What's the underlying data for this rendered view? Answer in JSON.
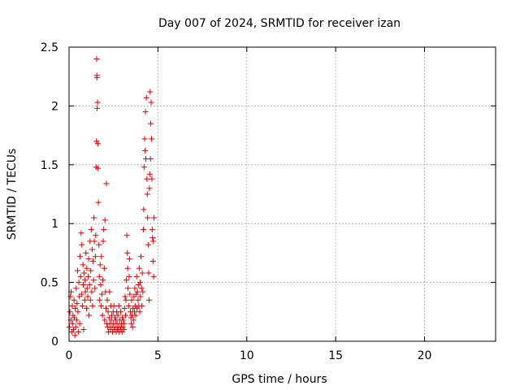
{
  "chart_data": {
    "type": "scatter",
    "title": "Day 007 of 2024, SRMTID for receiver izan",
    "xlabel": "GPS time / hours",
    "ylabel": "SRMTID / TECUs",
    "xlim": [
      0,
      24
    ],
    "ylim": [
      0,
      2.5
    ],
    "xticks": [
      0,
      5,
      10,
      15,
      20
    ],
    "yticks": [
      0,
      0.5,
      1,
      1.5,
      2,
      2.5
    ],
    "xtick_labels": [
      "0",
      "5",
      "10",
      "15",
      "20"
    ],
    "ytick_labels": [
      "0",
      "0.5",
      "1",
      "1.5",
      "2",
      "2.5"
    ],
    "grid": true,
    "marker": "+",
    "series": [
      {
        "name": "SRMTID",
        "color": "#e00000",
        "points": [
          [
            0.02,
            0.12
          ],
          [
            0.05,
            0.25
          ],
          [
            0.08,
            0.38
          ],
          [
            0.1,
            0.18
          ],
          [
            0.12,
            0.42
          ],
          [
            0.15,
            0.08
          ],
          [
            0.18,
            0.3
          ],
          [
            0.2,
            0.15
          ],
          [
            0.22,
            0.22
          ],
          [
            0.25,
            0.1
          ],
          [
            0.28,
            0.35
          ],
          [
            0.3,
            0.2
          ],
          [
            0.33,
            0.05
          ],
          [
            0.35,
            0.28
          ],
          [
            0.38,
            0.12
          ],
          [
            0.4,
            0.45
          ],
          [
            0.42,
            0.18
          ],
          [
            0.45,
            0.32
          ],
          [
            0.48,
            0.6
          ],
          [
            0.5,
            0.25
          ],
          [
            0.52,
            0.08
          ],
          [
            0.55,
            0.5
          ],
          [
            0.58,
            0.38
          ],
          [
            0.6,
            0.15
          ],
          [
            0.62,
            0.72
          ],
          [
            0.65,
            0.55
          ],
          [
            0.68,
            0.92
          ],
          [
            0.7,
            0.4
          ],
          [
            0.72,
            0.82
          ],
          [
            0.75,
            0.3
          ],
          [
            0.78,
            0.65
          ],
          [
            0.8,
            0.48
          ],
          [
            0.82,
            0.1
          ],
          [
            0.85,
            0.58
          ],
          [
            0.88,
            0.35
          ],
          [
            0.9,
            0.52
          ],
          [
            0.92,
            0.42
          ],
          [
            0.95,
            0.75
          ],
          [
            0.98,
            0.28
          ],
          [
            1.0,
            0.62
          ],
          [
            1.02,
            0.45
          ],
          [
            1.05,
            0.38
          ],
          [
            1.08,
            0.55
          ],
          [
            1.1,
            0.7
          ],
          [
            1.12,
            0.22
          ],
          [
            1.15,
            0.48
          ],
          [
            1.18,
            0.85
          ],
          [
            1.2,
            0.35
          ],
          [
            1.22,
            0.6
          ],
          [
            1.25,
            0.95
          ],
          [
            1.28,
            0.42
          ],
          [
            1.3,
            0.78
          ],
          [
            1.32,
            0.3
          ],
          [
            1.35,
            0.68
          ],
          [
            1.38,
            0.52
          ],
          [
            1.4,
            1.05
          ],
          [
            1.42,
            0.85
          ],
          [
            1.45,
            0.45
          ],
          [
            1.48,
            0.72
          ],
          [
            1.5,
            0.9
          ],
          [
            1.52,
            1.48
          ],
          [
            1.54,
            1.7
          ],
          [
            1.55,
            2.4
          ],
          [
            1.56,
            2.26
          ],
          [
            1.57,
            2.24
          ],
          [
            1.58,
            1.98
          ],
          [
            1.6,
            2.03
          ],
          [
            1.62,
            1.68
          ],
          [
            1.63,
            1.47
          ],
          [
            1.65,
            1.18
          ],
          [
            1.68,
            0.82
          ],
          [
            1.7,
            0.55
          ],
          [
            1.72,
            0.35
          ],
          [
            1.75,
            0.65
          ],
          [
            1.78,
            0.48
          ],
          [
            1.8,
            0.3
          ],
          [
            1.82,
            0.72
          ],
          [
            1.85,
            0.4
          ],
          [
            1.88,
            0.22
          ],
          [
            1.9,
            0.52
          ],
          [
            1.92,
            0.85
          ],
          [
            1.95,
            0.95
          ],
          [
            1.98,
            0.62
          ],
          [
            2.0,
            0.18
          ],
          [
            2.02,
            1.03
          ],
          [
            2.05,
            0.42
          ],
          [
            2.08,
            0.28
          ],
          [
            2.1,
            1.34
          ],
          [
            2.12,
            0.15
          ],
          [
            2.15,
            0.35
          ],
          [
            2.18,
            0.12
          ],
          [
            2.2,
            0.25
          ],
          [
            2.22,
            0.08
          ],
          [
            2.25,
            0.2
          ],
          [
            2.28,
            0.42
          ],
          [
            2.3,
            0.15
          ],
          [
            2.32,
            0.1
          ],
          [
            2.35,
            0.3
          ],
          [
            2.38,
            0.18
          ],
          [
            2.4,
            0.22
          ],
          [
            2.42,
            0.12
          ],
          [
            2.45,
            0.08
          ],
          [
            2.48,
            0.25
          ],
          [
            2.5,
            0.15
          ],
          [
            2.52,
            0.3
          ],
          [
            2.55,
            0.1
          ],
          [
            2.58,
            0.2
          ],
          [
            2.6,
            0.12
          ],
          [
            2.62,
            0.18
          ],
          [
            2.65,
            0.08
          ],
          [
            2.68,
            0.25
          ],
          [
            2.7,
            0.15
          ],
          [
            2.72,
            0.1
          ],
          [
            2.75,
            0.22
          ],
          [
            2.78,
            0.12
          ],
          [
            2.8,
            0.3
          ],
          [
            2.82,
            0.08
          ],
          [
            2.85,
            0.18
          ],
          [
            2.88,
            0.12
          ],
          [
            2.9,
            0.25
          ],
          [
            2.92,
            0.1
          ],
          [
            2.95,
            0.15
          ],
          [
            2.98,
            0.08
          ],
          [
            3.0,
            0.2
          ],
          [
            3.02,
            0.12
          ],
          [
            3.05,
            0.18
          ],
          [
            3.08,
            0.1
          ],
          [
            3.1,
            0.15
          ],
          [
            3.12,
            0.28
          ],
          [
            3.15,
            0.38
          ],
          [
            3.18,
            0.22
          ],
          [
            3.2,
            0.35
          ],
          [
            3.22,
            0.52
          ],
          [
            3.25,
            0.9
          ],
          [
            3.28,
            0.75
          ],
          [
            3.3,
            0.62
          ],
          [
            3.32,
            0.45
          ],
          [
            3.35,
            0.3
          ],
          [
            3.38,
            0.55
          ],
          [
            3.4,
            0.7
          ],
          [
            3.42,
            0.4
          ],
          [
            3.45,
            0.25
          ],
          [
            3.48,
            0.2
          ],
          [
            3.5,
            0.15
          ],
          [
            3.52,
            0.35
          ],
          [
            3.55,
            0.22
          ],
          [
            3.58,
            0.12
          ],
          [
            3.6,
            0.28
          ],
          [
            3.62,
            0.18
          ],
          [
            3.65,
            0.38
          ],
          [
            3.68,
            0.25
          ],
          [
            3.7,
            0.45
          ],
          [
            3.72,
            0.3
          ],
          [
            3.75,
            0.22
          ],
          [
            3.78,
            0.4
          ],
          [
            3.8,
            0.55
          ],
          [
            3.82,
            0.28
          ],
          [
            3.85,
            0.42
          ],
          [
            3.88,
            0.35
          ],
          [
            3.9,
            0.48
          ],
          [
            3.92,
            0.3
          ],
          [
            3.95,
            0.62
          ],
          [
            3.98,
            0.25
          ],
          [
            4.0,
            0.5
          ],
          [
            4.02,
            0.38
          ],
          [
            4.05,
            0.72
          ],
          [
            4.08,
            0.45
          ],
          [
            4.1,
            0.3
          ],
          [
            4.12,
            0.58
          ],
          [
            4.15,
            0.42
          ],
          [
            4.18,
            0.95
          ],
          [
            4.2,
            1.12
          ],
          [
            4.22,
            1.48
          ],
          [
            4.25,
            1.72
          ],
          [
            4.28,
            1.62
          ],
          [
            4.3,
            1.95
          ],
          [
            4.32,
            1.55
          ],
          [
            4.35,
            2.07
          ],
          [
            4.38,
            1.38
          ],
          [
            4.4,
            1.25
          ],
          [
            4.42,
            1.05
          ],
          [
            4.45,
            0.82
          ],
          [
            4.48,
            0.58
          ],
          [
            4.5,
            0.35
          ],
          [
            4.52,
            1.3
          ],
          [
            4.54,
            1.42
          ],
          [
            4.56,
            2.12
          ],
          [
            4.58,
            1.55
          ],
          [
            4.6,
            1.85
          ],
          [
            4.62,
            2.03
          ],
          [
            4.64,
            1.72
          ],
          [
            4.66,
            1.38
          ],
          [
            4.68,
            0.95
          ],
          [
            4.7,
            0.88
          ],
          [
            4.72,
            0.68
          ],
          [
            4.74,
            0.85
          ],
          [
            4.76,
            0.55
          ],
          [
            4.78,
            1.05
          ]
        ]
      }
    ]
  }
}
